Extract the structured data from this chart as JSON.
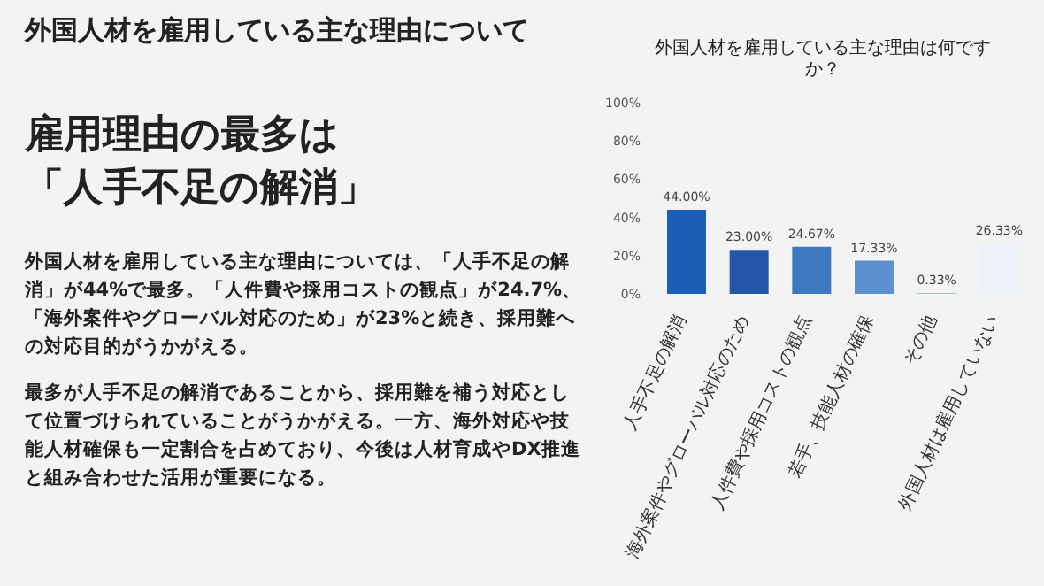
{
  "chart_data": {
    "type": "bar",
    "title": "外国人材を雇用している主な理由について",
    "subtitle": "外国人材を雇用している主な理由は何ですか？",
    "annotations": [
      "雇用理由の最多は",
      "「人手不足の解消」",
      "外国人材を雇用している主な理由については、「人手不足の解消」が44%で最多。「人件費や採用コストの観点」が24.7%、「海外案件やグローバル対応のため」が23%と続き、採用難への対応目的がうかがえる。",
      "最多が人手不足の解消であることから、採用難を補う対応として位置づけられていることがうかがえる。一方、海外対応や技能人材確保も一定割合を占めており、今後は人材育成やDX推進と組み合わせた活用が重要になる。"
    ],
    "categories": [
      "人手不足の解消",
      "海外案件やグローバル対応のため",
      "人件費や採用コストの観点",
      "若手、技能人材の確保",
      "その他",
      "外国人材は雇用していない"
    ],
    "values": [
      44,
      23,
      24.67,
      17.33,
      0.33,
      26.33
    ],
    "value_labels": [
      "44.00%",
      "23.00%",
      "24.67%",
      "17.33%",
      "0.33%",
      "26.33%"
    ],
    "colors": [
      "#1c5db5",
      "#2457a8",
      "#3e78bf",
      "#5b91d0",
      "#8aaedb",
      "#edf1f8"
    ],
    "ylim": [
      0,
      100
    ],
    "yticks": [
      {
        "value": 0,
        "label": "0%"
      },
      {
        "value": 20,
        "label": "20%"
      },
      {
        "value": 40,
        "label": "40%"
      },
      {
        "value": 60,
        "label": "60%"
      },
      {
        "value": 80,
        "label": "80%"
      },
      {
        "value": 100,
        "label": "100%"
      }
    ]
  }
}
